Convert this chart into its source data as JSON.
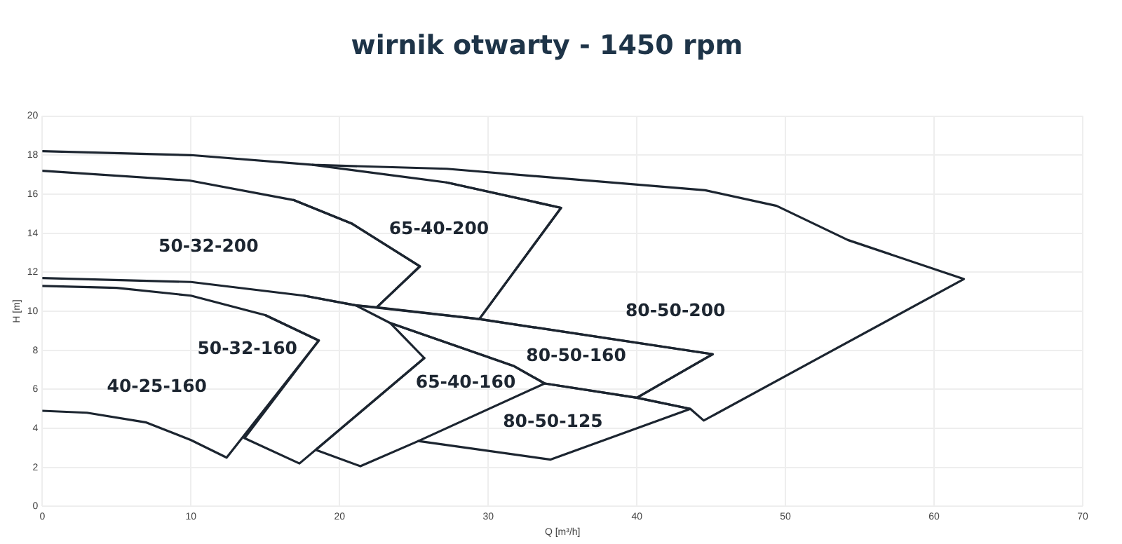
{
  "chart_data": {
    "type": "line",
    "title": "wirnik otwarty - 1450 rpm",
    "xlabel": "Q [m³/h]",
    "ylabel": "H [m]",
    "xlim": [
      0,
      70
    ],
    "xticks": [
      0,
      10,
      20,
      30,
      40,
      50,
      60,
      70
    ],
    "ylim": [
      0,
      20
    ],
    "yticks": [
      0,
      2,
      4,
      6,
      8,
      10,
      12,
      14,
      16,
      18,
      20
    ],
    "grid": true,
    "legend": false,
    "marker": "none",
    "line_style": "solid",
    "series": [
      {
        "name": "40-25-160",
        "color": "#1c2530",
        "x": [
          0,
          5,
          10,
          15,
          18.6,
          12.4,
          10,
          7,
          3,
          0
        ],
        "values": [
          11.3,
          11.2,
          10.8,
          9.8,
          8.5,
          2.5,
          3.4,
          4.3,
          4.8,
          4.9
        ]
      },
      {
        "name": "50-32-160",
        "color": "#1c2530",
        "x": [
          17.6,
          21.1,
          23.4,
          25.7,
          17.3,
          13.6,
          18.6,
          15
        ],
        "values": [
          10.8,
          10.3,
          9.4,
          7.6,
          2.2,
          3.5,
          8.5,
          9.8
        ]
      },
      {
        "name": "50-32-200",
        "color": "#1c2530",
        "x": [
          0,
          10,
          17.6,
          21.1,
          22.5,
          25.4,
          20.8,
          16.9,
          9.9,
          0
        ],
        "values": [
          11.7,
          11.5,
          10.8,
          10.3,
          10.2,
          12.3,
          14.5,
          15.7,
          16.7,
          17.2
        ]
      },
      {
        "name": "65-40-200",
        "color": "#1c2530",
        "x": [
          18.2,
          27.2,
          34.9,
          29.4,
          22.5,
          25.4,
          20.8,
          16.9
        ],
        "values": [
          17.5,
          16.6,
          15.3,
          9.6,
          10.2,
          12.3,
          14.5,
          15.7
        ]
      },
      {
        "name": "80-50-200",
        "color": "#1c2530",
        "x": [
          0,
          10,
          18.2,
          27.2,
          44.6,
          49.4,
          54.2,
          62,
          44.5,
          43.6,
          40,
          45.1,
          29.4,
          34.9,
          27.2
        ],
        "values": [
          18.2,
          18,
          17.5,
          17.3,
          16.2,
          15.4,
          13.65,
          11.65,
          4.4,
          5,
          5.57,
          7.8,
          9.6,
          15.3,
          16.6
        ]
      },
      {
        "name": "80-50-160",
        "color": "#1c2530",
        "x": [
          21.1,
          29.4,
          45.1,
          40,
          33.8,
          31.7,
          23.4
        ],
        "values": [
          10.3,
          9.6,
          7.8,
          5.57,
          6.3,
          7.2,
          9.4
        ]
      },
      {
        "name": "65-40-160",
        "color": "#1c2530",
        "x": [
          23.4,
          31.7,
          33.8,
          25.3,
          21.4,
          18.4,
          25.7
        ],
        "values": [
          9.4,
          7.2,
          6.3,
          3.35,
          2.06,
          2.9,
          7.6
        ]
      },
      {
        "name": "80-50-125",
        "color": "#1c2530",
        "x": [
          33.8,
          40,
          43.6,
          34.2,
          25.3
        ],
        "values": [
          6.3,
          5.57,
          5,
          2.4,
          3.35
        ]
      }
    ]
  }
}
